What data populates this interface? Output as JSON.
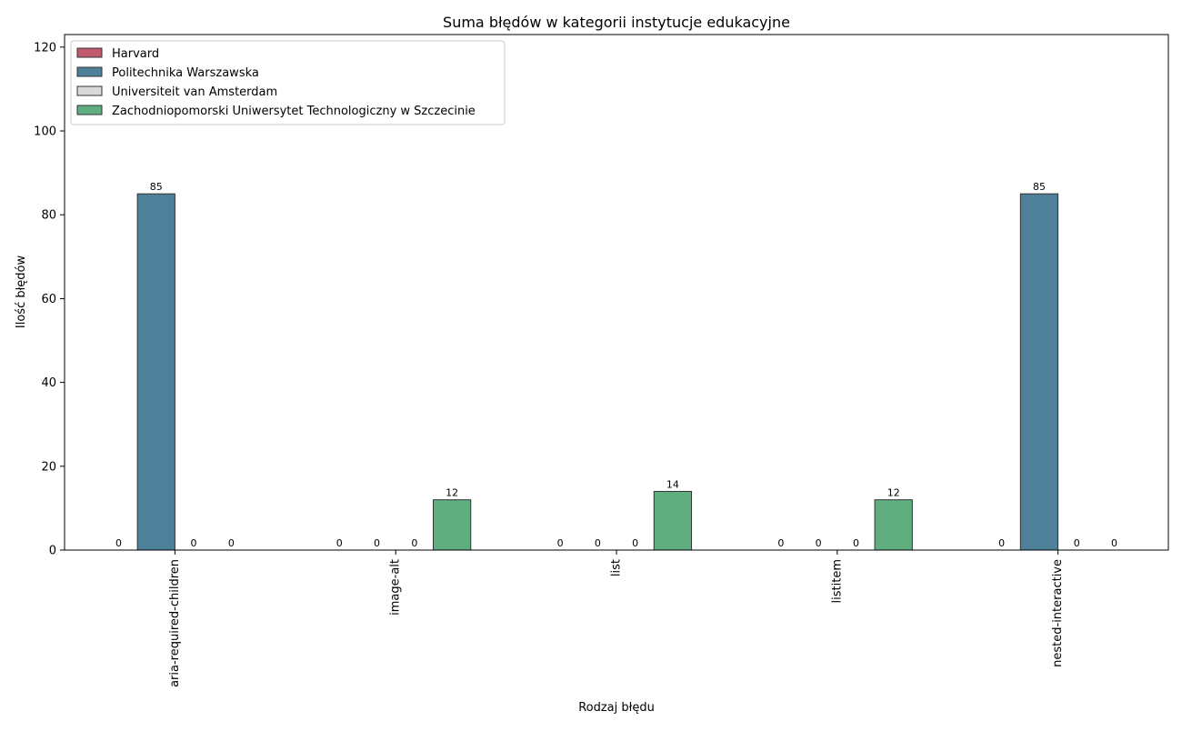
{
  "chart_data": {
    "type": "bar",
    "title": "Suma błędów w kategorii instytucje edukacyjne",
    "xlabel": "Rodzaj błędu",
    "ylabel": "Ilość błędów",
    "ylim": [
      0,
      123
    ],
    "yticks": [
      0,
      20,
      40,
      60,
      80,
      100,
      120
    ],
    "categories": [
      "aria-required-children",
      "image-alt",
      "list",
      "listitem",
      "nested-interactive"
    ],
    "legend_position": "top-left",
    "grid": false,
    "series": [
      {
        "name": "Harvard",
        "color": "#c25a6e",
        "values": [
          0,
          0,
          0,
          0,
          0
        ]
      },
      {
        "name": "Politechnika Warszawska",
        "color": "#4f8099",
        "values": [
          85,
          0,
          0,
          0,
          85
        ]
      },
      {
        "name": "Universiteit van Amsterdam",
        "color": "#d9d9d9",
        "values": [
          0,
          0,
          0,
          0,
          0
        ]
      },
      {
        "name": "Zachodniopomorski Uniwersytet Technologiczny w Szczecinie",
        "color": "#60ae80",
        "values": [
          0,
          12,
          14,
          12,
          0
        ]
      }
    ]
  }
}
